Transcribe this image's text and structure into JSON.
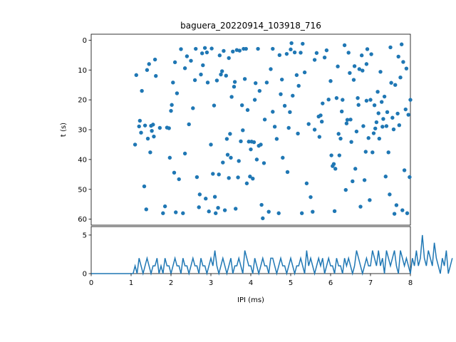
{
  "chart_data": [
    {
      "type": "scatter",
      "title": "baguera_20220914_103918_716",
      "xlabel": "",
      "ylabel": "t (s)",
      "xlim": [
        0,
        8
      ],
      "ylim": [
        62,
        -2
      ],
      "y_inverted": true,
      "yticks": [
        "0",
        "10",
        "20",
        "30",
        "40",
        "50",
        "60"
      ],
      "color": "#1f77b4",
      "series": [
        {
          "points": [
            [
              1.1,
              35.0
            ],
            [
              1.13,
              11.7
            ],
            [
              1.2,
              28.9
            ],
            [
              1.22,
              27.0
            ],
            [
              1.25,
              31.0
            ],
            [
              1.27,
              17.0
            ],
            [
              1.33,
              49.0
            ],
            [
              1.35,
              28.6
            ],
            [
              1.38,
              56.7
            ],
            [
              1.4,
              10.0
            ],
            [
              1.42,
              33.0
            ],
            [
              1.45,
              8.0
            ],
            [
              1.48,
              37.6
            ],
            [
              1.5,
              28.7
            ],
            [
              1.52,
              30.4
            ],
            [
              1.55,
              28.3
            ],
            [
              1.57,
              32.3
            ],
            [
              1.6,
              6.5
            ],
            [
              1.62,
              12.0
            ],
            [
              1.72,
              29.4
            ],
            [
              1.8,
              58.0
            ],
            [
              1.85,
              55.7
            ],
            [
              1.9,
              29.3
            ],
            [
              1.95,
              29.5
            ],
            [
              1.97,
              39.4
            ],
            [
              2.0,
              23.7
            ],
            [
              2.02,
              21.7
            ],
            [
              2.05,
              14.2
            ],
            [
              2.08,
              44.4
            ],
            [
              2.1,
              7.4
            ],
            [
              2.12,
              57.7
            ],
            [
              2.15,
              17.8
            ],
            [
              2.2,
              46.6
            ],
            [
              2.25,
              3.0
            ],
            [
              2.3,
              58.0
            ],
            [
              2.35,
              9.4
            ],
            [
              2.4,
              5.4
            ],
            [
              2.45,
              28.2
            ],
            [
              2.5,
              6.9
            ],
            [
              2.55,
              22.8
            ],
            [
              2.6,
              13.4
            ],
            [
              2.62,
              2.9
            ],
            [
              2.65,
              45.9
            ],
            [
              2.7,
              56.0
            ],
            [
              2.72,
              51.7
            ],
            [
              2.75,
              11.5
            ],
            [
              2.78,
              4.4
            ],
            [
              2.8,
              8.4
            ],
            [
              2.85,
              2.6
            ],
            [
              2.87,
              53.1
            ],
            [
              2.9,
              4.1
            ],
            [
              2.92,
              14.2
            ],
            [
              2.95,
              57.4
            ],
            [
              3.0,
              35.0
            ],
            [
              3.02,
              2.8
            ],
            [
              3.05,
              44.8
            ],
            [
              3.08,
              21.9
            ],
            [
              3.1,
              52.5
            ],
            [
              3.12,
              58.0
            ],
            [
              3.15,
              13.5
            ],
            [
              3.18,
              56.2
            ],
            [
              3.2,
              45.0
            ],
            [
              3.22,
              5.1
            ],
            [
              3.25,
              11.5
            ],
            [
              3.28,
              10.4
            ],
            [
              3.3,
              41.0
            ],
            [
              3.32,
              3.6
            ],
            [
              3.35,
              57.0
            ],
            [
              3.38,
              11.9
            ],
            [
              3.4,
              33.1
            ],
            [
              3.42,
              38.4
            ],
            [
              3.45,
              46.2
            ],
            [
              3.48,
              31.4
            ],
            [
              3.5,
              39.4
            ],
            [
              3.52,
              19.0
            ],
            [
              3.55,
              3.8
            ],
            [
              3.58,
              15.6
            ],
            [
              3.6,
              14.0
            ],
            [
              3.62,
              56.5
            ],
            [
              3.65,
              3.3
            ],
            [
              3.68,
              46.0
            ],
            [
              3.7,
              40.5
            ],
            [
              3.72,
              3.5
            ],
            [
              3.75,
              33.9
            ],
            [
              3.78,
              21.8
            ],
            [
              3.8,
              30.2
            ],
            [
              3.82,
              2.9
            ],
            [
              3.85,
              13.0
            ],
            [
              3.88,
              2.9
            ],
            [
              3.9,
              48.0
            ],
            [
              3.92,
              23.4
            ],
            [
              3.95,
              34.0
            ],
            [
              3.98,
              45.7
            ],
            [
              4.0,
              36.6
            ],
            [
              4.02,
              34.0
            ],
            [
              4.05,
              46.4
            ],
            [
              4.08,
              34.2
            ],
            [
              4.1,
              20.0
            ],
            [
              4.12,
              14.4
            ],
            [
              4.15,
              40.0
            ],
            [
              4.18,
              2.9
            ],
            [
              4.2,
              35.4
            ],
            [
              4.22,
              17.0
            ],
            [
              4.25,
              35.0
            ],
            [
              4.27,
              55.2
            ],
            [
              4.3,
              59.7
            ],
            [
              4.33,
              41.2
            ],
            [
              4.35,
              26.6
            ],
            [
              4.4,
              14.2
            ],
            [
              4.45,
              57.5
            ],
            [
              4.5,
              9.7
            ],
            [
              4.55,
              2.9
            ],
            [
              4.6,
              29.0
            ],
            [
              4.65,
              33.1
            ],
            [
              4.7,
              58.0
            ],
            [
              4.72,
              5.0
            ],
            [
              4.75,
              18.1
            ],
            [
              4.78,
              13.2
            ],
            [
              4.8,
              39.4
            ],
            [
              4.85,
              22.0
            ],
            [
              4.9,
              4.6
            ],
            [
              4.92,
              44.2
            ],
            [
              4.95,
              29.4
            ],
            [
              4.98,
              24.1
            ],
            [
              5.0,
              3.1
            ],
            [
              5.02,
              1.0
            ],
            [
              5.05,
              18.6
            ],
            [
              5.1,
              4.1
            ],
            [
              5.15,
              11.7
            ],
            [
              5.18,
              31.3
            ],
            [
              5.2,
              15.3
            ],
            [
              5.25,
              4.2
            ],
            [
              5.28,
              58.0
            ],
            [
              5.3,
              1.2
            ],
            [
              5.35,
              10.8
            ],
            [
              5.4,
              48.0
            ],
            [
              5.45,
              28.1
            ],
            [
              5.5,
              52.6
            ],
            [
              5.55,
              57.5
            ],
            [
              5.6,
              6.6
            ],
            [
              5.65,
              4.3
            ],
            [
              5.7,
              25.6
            ],
            [
              5.72,
              32.4
            ],
            [
              5.75,
              25.2
            ],
            [
              5.78,
              27.3
            ],
            [
              5.8,
              21.2
            ],
            [
              5.85,
              5.8
            ],
            [
              5.9,
              3.4
            ],
            [
              5.95,
              19.9
            ],
            [
              6.0,
              13.7
            ],
            [
              6.02,
              38.6
            ],
            [
              6.05,
              42.2
            ],
            [
              6.08,
              41.5
            ],
            [
              6.1,
              57.3
            ],
            [
              6.12,
              43.1
            ],
            [
              6.15,
              19.4
            ],
            [
              6.18,
              8.8
            ],
            [
              6.2,
              31.4
            ],
            [
              6.22,
              38.6
            ],
            [
              6.25,
              33.0
            ],
            [
              6.28,
              23.9
            ],
            [
              6.3,
              20.0
            ],
            [
              6.35,
              1.7
            ],
            [
              6.38,
              50.2
            ],
            [
              6.4,
              27.9
            ],
            [
              6.42,
              26.7
            ],
            [
              6.45,
              4.2
            ],
            [
              6.48,
              11.0
            ],
            [
              6.5,
              26.6
            ],
            [
              6.52,
              34.1
            ],
            [
              6.55,
              47.3
            ],
            [
              6.58,
              13.3
            ],
            [
              6.6,
              8.7
            ],
            [
              6.62,
              43.1
            ],
            [
              6.65,
              30.6
            ],
            [
              6.68,
              19.4
            ],
            [
              6.7,
              21.7
            ],
            [
              6.72,
              9.7
            ],
            [
              6.75,
              55.8
            ],
            [
              6.78,
              5.1
            ],
            [
              6.8,
              10.2
            ],
            [
              6.82,
              28.8
            ],
            [
              6.85,
              46.9
            ],
            [
              6.88,
              37.4
            ],
            [
              6.9,
              20.3
            ],
            [
              6.92,
              3.0
            ],
            [
              6.95,
              32.8
            ],
            [
              6.98,
              53.6
            ],
            [
              7.0,
              20.0
            ],
            [
              7.02,
              4.7
            ],
            [
              7.05,
              37.6
            ],
            [
              7.08,
              31.2
            ],
            [
              7.1,
              21.8
            ],
            [
              7.12,
              29.6
            ],
            [
              7.15,
              27.5
            ],
            [
              7.18,
              17.3
            ],
            [
              7.2,
              24.5
            ],
            [
              7.22,
              33.0
            ],
            [
              7.25,
              10.6
            ],
            [
              7.28,
              20.7
            ],
            [
              7.3,
              29.0
            ],
            [
              7.32,
              26.4
            ],
            [
              7.35,
              18.9
            ],
            [
              7.38,
              45.7
            ],
            [
              7.4,
              28.8
            ],
            [
              7.42,
              24.1
            ],
            [
              7.45,
              37.6
            ],
            [
              7.48,
              51.7
            ],
            [
              7.5,
              2.4
            ],
            [
              7.52,
              14.3
            ],
            [
              7.55,
              26.0
            ],
            [
              7.58,
              29.9
            ],
            [
              7.6,
              58.2
            ],
            [
              7.62,
              15.0
            ],
            [
              7.65,
              55.3
            ],
            [
              7.68,
              24.6
            ],
            [
              7.7,
              5.5
            ],
            [
              7.72,
              28.5
            ],
            [
              7.75,
              12.5
            ],
            [
              7.78,
              1.4
            ],
            [
              7.8,
              57.0
            ],
            [
              7.82,
              7.3
            ],
            [
              7.85,
              43.6
            ],
            [
              7.88,
              23.2
            ],
            [
              7.9,
              9.5
            ],
            [
              7.92,
              58.0
            ],
            [
              7.95,
              25.0
            ],
            [
              7.98,
              45.9
            ],
            [
              8.0,
              20.0
            ],
            [
              6.9,
              8.0
            ],
            [
              5.6,
              30.0
            ],
            [
              4.55,
              24.0
            ],
            [
              3.45,
              6.0
            ],
            [
              2.35,
              38.0
            ]
          ]
        }
      ]
    },
    {
      "type": "line",
      "title": "",
      "xlabel": "IPI (ms)",
      "ylabel": "",
      "xlim": [
        0,
        8
      ],
      "ylim": [
        0,
        6.1
      ],
      "xticks": [
        "0",
        "1",
        "2",
        "3",
        "4",
        "5",
        "6",
        "7",
        "8"
      ],
      "yticks": [
        "0",
        "5"
      ],
      "color": "#1f77b4",
      "series": [
        {
          "x_start": 0,
          "x_step": 0.05,
          "values": [
            0,
            0,
            0,
            0,
            0,
            0,
            0,
            0,
            0,
            0,
            0,
            0,
            0,
            0,
            0,
            0,
            0,
            0,
            0,
            0,
            0,
            0,
            1,
            0,
            2,
            1,
            0,
            1,
            2,
            1,
            0,
            1,
            1,
            2,
            0,
            1,
            0,
            2,
            1,
            1,
            0,
            1,
            2,
            1,
            1,
            0,
            2,
            1,
            1,
            0,
            1,
            2,
            1,
            1,
            0,
            2,
            1,
            1,
            0,
            1,
            2,
            1,
            3,
            1,
            0,
            1,
            2,
            1,
            0,
            1,
            2,
            0,
            1,
            1,
            2,
            1,
            0,
            3,
            2,
            1,
            1,
            0,
            2,
            1,
            0,
            1,
            2,
            1,
            1,
            0,
            2,
            2,
            1,
            0,
            1,
            2,
            1,
            1,
            0,
            1,
            2,
            1,
            0,
            1,
            1,
            2,
            1,
            0,
            3,
            1,
            2,
            1,
            0,
            1,
            2,
            1,
            2,
            0,
            1,
            2,
            1,
            1,
            0,
            2,
            1,
            1,
            0,
            2,
            1,
            2,
            1,
            0,
            1,
            3,
            2,
            1,
            0,
            1,
            2,
            1,
            1,
            3,
            2,
            1,
            3,
            1,
            2,
            0,
            3,
            2,
            1,
            2,
            3,
            1,
            0,
            3,
            2,
            1,
            2,
            1,
            0,
            2,
            1,
            3,
            1,
            2,
            5,
            2,
            1,
            3,
            2,
            1,
            4,
            2,
            1,
            0,
            2,
            1,
            3,
            0,
            1,
            2
          ]
        }
      ]
    }
  ]
}
